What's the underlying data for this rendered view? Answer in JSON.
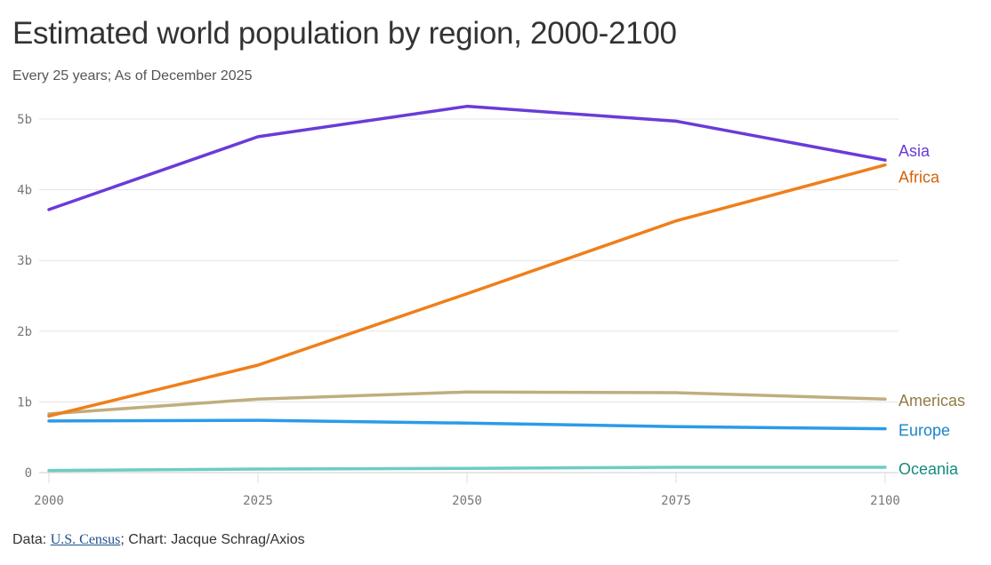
{
  "title": "Estimated world population by region, 2000-2100",
  "subtitle": "Every 25 years; As of December 2025",
  "footer": {
    "prefix": "Data: ",
    "source_link": "U.S. Census",
    "suffix": "; Chart: Jacque Schrag/Axios"
  },
  "chart_data": {
    "type": "line",
    "x": [
      2000,
      2025,
      2050,
      2075,
      2100
    ],
    "xticks": [
      "2000",
      "2025",
      "2050",
      "2075",
      "2100"
    ],
    "ylim": [
      0,
      5
    ],
    "yticks": [
      {
        "v": 0,
        "label": "0"
      },
      {
        "v": 1,
        "label": "1b"
      },
      {
        "v": 2,
        "label": "2b"
      },
      {
        "v": 3,
        "label": "3b"
      },
      {
        "v": 4,
        "label": "4b"
      },
      {
        "v": 5,
        "label": "5b"
      }
    ],
    "grid": true,
    "legend": "direct labels at line ends",
    "series": [
      {
        "name": "Asia",
        "color": "#6a3bd8",
        "label_color": "#6a3bd8",
        "values": [
          3.72,
          4.75,
          5.18,
          4.97,
          4.42
        ]
      },
      {
        "name": "Africa",
        "color": "#ef7f1a",
        "label_color": "#d0650a",
        "values": [
          0.8,
          1.52,
          2.53,
          3.56,
          4.35
        ]
      },
      {
        "name": "Americas",
        "color": "#bfae7e",
        "label_color": "#8f7c46",
        "values": [
          0.83,
          1.04,
          1.14,
          1.13,
          1.04
        ]
      },
      {
        "name": "Europe",
        "color": "#2b9be8",
        "label_color": "#1a84c8",
        "values": [
          0.73,
          0.74,
          0.7,
          0.65,
          0.62
        ]
      },
      {
        "name": "Oceania",
        "color": "#6ccdc2",
        "label_color": "#158a80",
        "values": [
          0.03,
          0.05,
          0.06,
          0.075,
          0.075
        ]
      }
    ]
  }
}
